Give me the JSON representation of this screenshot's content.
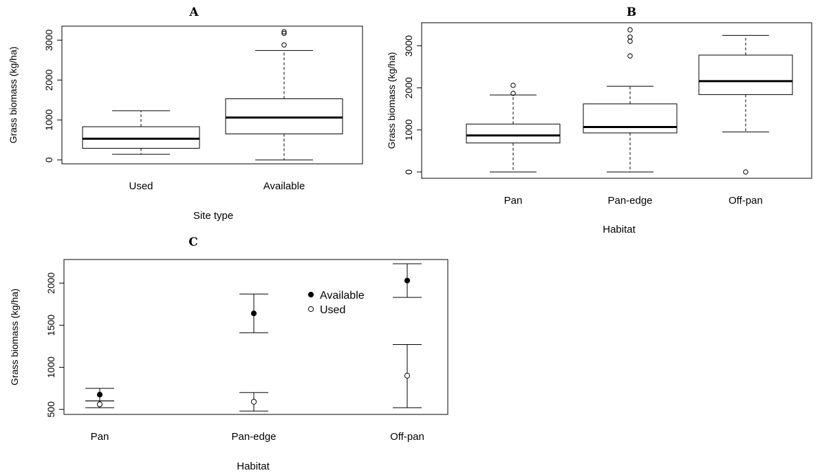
{
  "chart_data": [
    {
      "panel": "A",
      "type": "box",
      "title": "A",
      "xlabel": "Site type",
      "ylabel": "Grass biomass (kg/ha)",
      "ylim": [
        -100,
        3350
      ],
      "yticks": [
        0,
        1000,
        2000,
        3000
      ],
      "categories": [
        "Used",
        "Available"
      ],
      "boxes": [
        {
          "name": "Used",
          "min": 140,
          "q1": 290,
          "median": 530,
          "q3": 830,
          "max": 1230,
          "outliers": []
        },
        {
          "name": "Available",
          "min": 0,
          "q1": 650,
          "median": 1060,
          "q3": 1530,
          "max": 2740,
          "outliers": [
            2880,
            3170,
            3210
          ]
        }
      ]
    },
    {
      "panel": "B",
      "type": "box",
      "title": "B",
      "xlabel": "Habitat",
      "ylabel": "Grass biomass (kg/ha)",
      "ylim": [
        -150,
        3550
      ],
      "yticks": [
        0,
        1000,
        2000,
        3000
      ],
      "categories": [
        "Pan",
        "Pan-edge",
        "Off-pan"
      ],
      "boxes": [
        {
          "name": "Pan",
          "min": 0,
          "q1": 690,
          "median": 870,
          "q3": 1140,
          "max": 1830,
          "outliers": [
            1870,
            2060
          ]
        },
        {
          "name": "Pan-edge",
          "min": 0,
          "q1": 930,
          "median": 1070,
          "q3": 1620,
          "max": 2040,
          "outliers": [
            2760,
            3110,
            3210,
            3380
          ]
        },
        {
          "name": "Off-pan",
          "min": 950,
          "q1": 1840,
          "median": 2160,
          "q3": 2780,
          "max": 3250,
          "outliers": [
            0
          ]
        }
      ]
    },
    {
      "panel": "C",
      "type": "scatter",
      "title": "C",
      "xlabel": "Habitat",
      "ylabel": "Grass biomass (kg/ha)",
      "ylim": [
        440,
        2280
      ],
      "yticks": [
        500,
        1000,
        1500,
        2000
      ],
      "categories": [
        "Pan",
        "Pan-edge",
        "Off-pan"
      ],
      "legend_position": "top-right",
      "series": [
        {
          "name": "Available",
          "marker": "filled",
          "values": [
            675,
            1640,
            2030
          ],
          "lower": [
            600,
            1410,
            1830
          ],
          "upper": [
            750,
            1870,
            2230
          ]
        },
        {
          "name": "Used",
          "marker": "open",
          "values": [
            560,
            590,
            900
          ],
          "lower": [
            520,
            480,
            520
          ],
          "upper": [
            600,
            700,
            1270
          ]
        }
      ]
    }
  ]
}
